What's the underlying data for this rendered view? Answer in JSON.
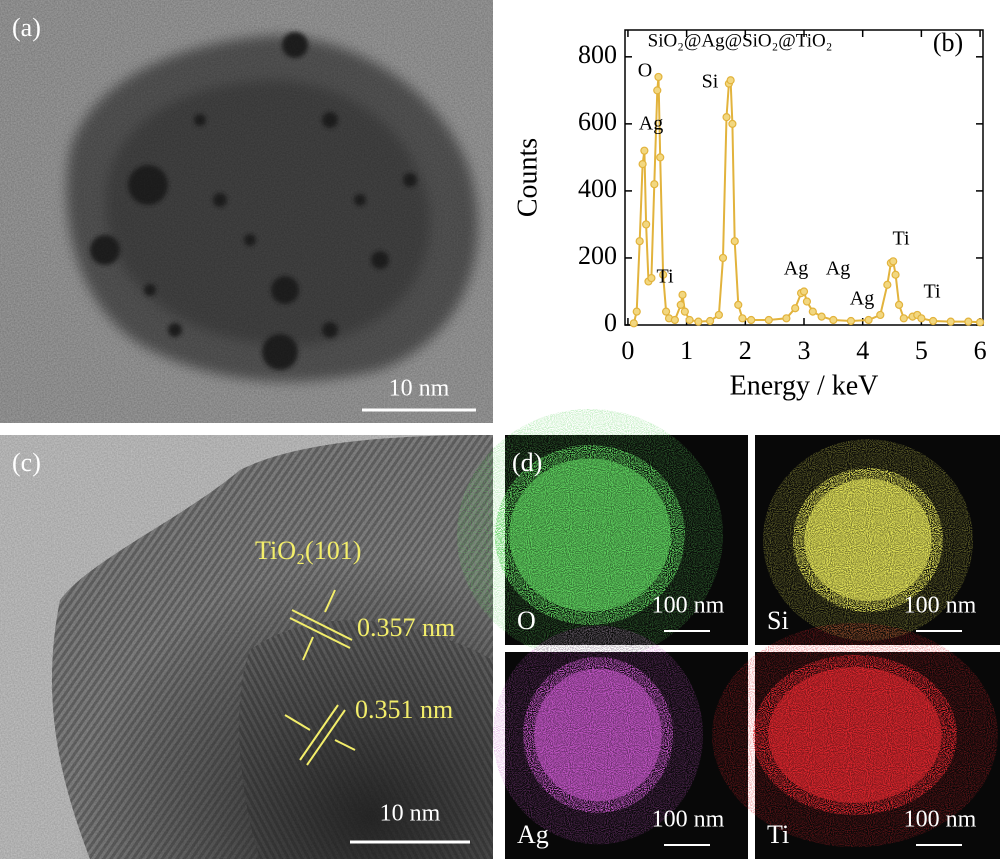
{
  "chart_data": {
    "type": "line",
    "title": "SiO₂@Ag@SiO₂@TiO₂",
    "panel_label": "(b)",
    "xlabel": "Energy / keV",
    "ylabel": "Counts",
    "color": "#e2b33c",
    "x": [
      0.1,
      0.15,
      0.2,
      0.25,
      0.28,
      0.31,
      0.35,
      0.4,
      0.45,
      0.5,
      0.52,
      0.55,
      0.6,
      0.65,
      0.7,
      0.8,
      0.9,
      0.93,
      0.97,
      1.05,
      1.2,
      1.4,
      1.55,
      1.62,
      1.68,
      1.72,
      1.75,
      1.78,
      1.82,
      1.88,
      1.95,
      2.1,
      2.4,
      2.7,
      2.85,
      2.95,
      3.0,
      3.05,
      3.15,
      3.3,
      3.5,
      3.8,
      4.1,
      4.3,
      4.42,
      4.48,
      4.52,
      4.56,
      4.62,
      4.7,
      4.85,
      4.93,
      5.0,
      5.2,
      5.5,
      5.8,
      6.0
    ],
    "values": [
      5,
      40,
      250,
      480,
      520,
      300,
      130,
      140,
      420,
      700,
      740,
      500,
      150,
      40,
      20,
      15,
      60,
      90,
      40,
      15,
      10,
      12,
      30,
      200,
      620,
      720,
      730,
      600,
      250,
      60,
      20,
      15,
      15,
      20,
      50,
      95,
      100,
      70,
      40,
      25,
      15,
      12,
      15,
      30,
      120,
      185,
      190,
      150,
      60,
      20,
      25,
      30,
      20,
      12,
      10,
      10,
      8
    ],
    "annotations": [
      "O",
      "Ag",
      "Ti",
      "Si",
      "Ag",
      "Ag",
      "Ag",
      "Ti",
      "Ti"
    ],
    "xlim": [
      -0.05,
      6.05
    ],
    "ylim": [
      0,
      880
    ],
    "xticks": [
      0,
      1,
      2,
      3,
      4,
      5,
      6
    ],
    "yticks": [
      0,
      200,
      400,
      600,
      800
    ]
  },
  "panels": {
    "a": {
      "label": "(a)",
      "scale_bar": "10 nm"
    },
    "c": {
      "label": "(c)",
      "plane": "TiO₂(101)",
      "spacings": [
        "0.357 nm",
        "0.351 nm"
      ],
      "scale_bar": "10 nm"
    },
    "d": {
      "label": "(d)",
      "maps": [
        {
          "element": "O",
          "scale_bar": "100 nm",
          "color": "#5fd35f"
        },
        {
          "element": "Si",
          "scale_bar": "100 nm",
          "color": "#e6e65a"
        },
        {
          "element": "Ag",
          "scale_bar": "100 nm",
          "color": "#c456c8"
        },
        {
          "element": "Ti",
          "scale_bar": "100 nm",
          "color": "#e0262e"
        }
      ]
    }
  }
}
